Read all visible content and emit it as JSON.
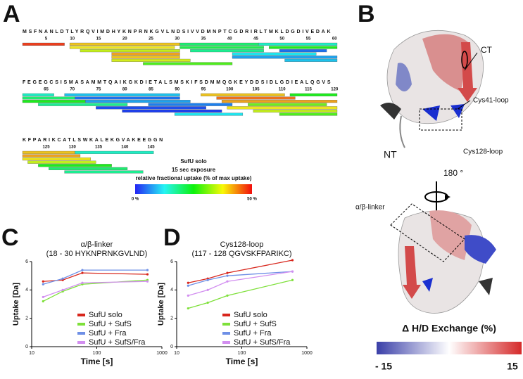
{
  "panel_labels": [
    "A",
    "B",
    "C",
    "D"
  ],
  "coverage_map": {
    "blocks": [
      {
        "start": 1,
        "sequence": "MSFNANLDTLYRQVIMDHYKNPRNKGVLNDSIVVDMNPTCGDRIRLTMKLDGDIVEDAK",
        "ticks": [
          5,
          10,
          15,
          20,
          25,
          30,
          35,
          40,
          45,
          50,
          55,
          60
        ],
        "peptides": [
          [
            1,
            8,
            48
          ],
          [
            10,
            30,
            40
          ],
          [
            10,
            29,
            38
          ],
          [
            12,
            30,
            35
          ],
          [
            18,
            30,
            42
          ],
          [
            18,
            30,
            40
          ],
          [
            18,
            32,
            36
          ],
          [
            24,
            40,
            28
          ],
          [
            31,
            45,
            20
          ],
          [
            31,
            46,
            22
          ],
          [
            33,
            46,
            18
          ],
          [
            41,
            56,
            12
          ],
          [
            41,
            60,
            8
          ],
          [
            46,
            60,
            15
          ],
          [
            48,
            60,
            25
          ],
          [
            50,
            58,
            5
          ],
          [
            51,
            60,
            10
          ]
        ]
      },
      {
        "start": 61,
        "sequence": "FEGEGCSISMASAMMTQAIKGKDIETALSMSKIFSDMMQGKEYDDSIDLGDIEALQGVS",
        "ticks": [
          65,
          70,
          75,
          80,
          85,
          90,
          95,
          100,
          105,
          110,
          115,
          120
        ],
        "peptides": [
          [
            61,
            66,
            15
          ],
          [
            61,
            70,
            20
          ],
          [
            61,
            72,
            25
          ],
          [
            64,
            80,
            18
          ],
          [
            69,
            90,
            10
          ],
          [
            71,
            90,
            5
          ],
          [
            73,
            92,
            8
          ],
          [
            75,
            95,
            3
          ],
          [
            80,
            98,
            2
          ],
          [
            85,
            100,
            6
          ],
          [
            90,
            102,
            12
          ],
          [
            95,
            110,
            40
          ],
          [
            98,
            112,
            45
          ],
          [
            99,
            120,
            42
          ],
          [
            100,
            120,
            38
          ],
          [
            104,
            118,
            30
          ],
          [
            105,
            120,
            35
          ],
          [
            110,
            120,
            28
          ],
          [
            112,
            120,
            25
          ]
        ]
      },
      {
        "start": 121,
        "sequence": "KFPARIKCATLSWKALEKGVAKEEGGN",
        "ticks": [
          125,
          130,
          135,
          140,
          145
        ],
        "peptides": [
          [
            121,
            130,
            40
          ],
          [
            121,
            131,
            42
          ],
          [
            121,
            133,
            38
          ],
          [
            122,
            134,
            35
          ],
          [
            124,
            137,
            25
          ],
          [
            126,
            140,
            20
          ],
          [
            129,
            143,
            18
          ],
          [
            131,
            145,
            15
          ]
        ]
      }
    ],
    "caption": [
      "SufU solo",
      "15 sec exposure",
      "relative fractional uptake (% of max uptake)"
    ],
    "colorbar": {
      "lim": [
        0,
        50
      ],
      "ticks": [
        {
          "value": 0,
          "label": "0 %"
        },
        {
          "value": 50,
          "label": "50 %"
        }
      ]
    }
  },
  "structure": {
    "labels": [
      "CT",
      "Cys41-loop",
      "Cys128-loop",
      "NT",
      "180 °",
      "α/β-linker"
    ],
    "colorbar_title": "Δ H/D Exchange (%)",
    "colorbar": {
      "lim": [
        -15,
        15
      ],
      "ticks": [
        {
          "value": -15,
          "label": "- 15"
        },
        {
          "value": 15,
          "label": "15"
        }
      ]
    }
  },
  "chart_data": [
    {
      "type": "line",
      "title": [
        "α/β-linker",
        "(18 - 30 HYKNPRNKGVLND)"
      ],
      "x_label": "Time [s]",
      "y_label": "Uptake [Da]",
      "x": [
        15,
        30,
        60,
        600
      ],
      "xlim": [
        10,
        1000
      ],
      "xticks": [
        10,
        100,
        1000
      ],
      "log_x": true,
      "ylim": [
        0,
        6
      ],
      "yticks": [
        0,
        2,
        4,
        6
      ],
      "legend": "lower right",
      "series": [
        {
          "name": "SufU solo",
          "color": "#d8261c",
          "values": [
            4.6,
            4.7,
            5.2,
            5.1
          ]
        },
        {
          "name": "SufU + SufS",
          "color": "#7ee03a",
          "values": [
            3.2,
            3.9,
            4.4,
            4.7
          ]
        },
        {
          "name": "SufU + Fra",
          "color": "#6e8fe6",
          "values": [
            4.4,
            4.8,
            5.4,
            5.4
          ]
        },
        {
          "name": "SufU + SufS/Fra",
          "color": "#d28ef0",
          "values": [
            3.5,
            4.0,
            4.5,
            4.6
          ]
        }
      ]
    },
    {
      "type": "line",
      "title": [
        "Cys128-loop",
        "(117 - 128 QGVSKFPARIKC)"
      ],
      "x_label": "Time [s]",
      "y_label": "Uptake [Da]",
      "x": [
        15,
        30,
        60,
        600
      ],
      "xlim": [
        10,
        1000
      ],
      "xticks": [
        10,
        100,
        1000
      ],
      "log_x": true,
      "ylim": [
        0,
        6
      ],
      "yticks": [
        0,
        2,
        4,
        6
      ],
      "legend": "lower right",
      "series": [
        {
          "name": "SufU solo",
          "color": "#d8261c",
          "values": [
            4.5,
            4.8,
            5.2,
            6.1
          ]
        },
        {
          "name": "SufU + SufS",
          "color": "#7ee03a",
          "values": [
            2.7,
            3.1,
            3.6,
            4.7
          ]
        },
        {
          "name": "SufU + Fra",
          "color": "#6e8fe6",
          "values": [
            4.3,
            4.7,
            5.0,
            5.3
          ]
        },
        {
          "name": "SufU + SufS/Fra",
          "color": "#d28ef0",
          "values": [
            3.6,
            4.0,
            4.6,
            5.3
          ]
        }
      ]
    }
  ]
}
